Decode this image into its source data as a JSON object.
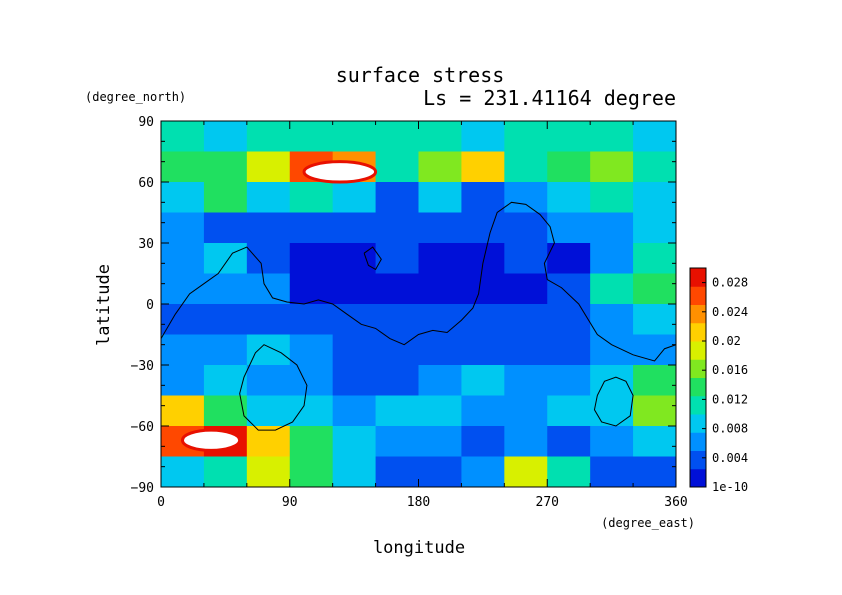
{
  "chart_data": {
    "type": "heatmap",
    "title": "surface stress",
    "subtitle": "Ls = 231.41164 degree",
    "xlabel": "longitude",
    "ylabel": "latitude",
    "xunit": "(degree_east)",
    "yunit": "(degree_north)",
    "xlim": [
      0,
      360
    ],
    "ylim": [
      -90,
      90
    ],
    "xticks": [
      "0",
      "90",
      "180",
      "270",
      "360"
    ],
    "yticks": [
      "90",
      "60",
      "30",
      "0",
      "−30",
      "−60",
      "−90"
    ],
    "xtick_values": [
      0,
      90,
      180,
      270,
      360
    ],
    "ytick_values": [
      90,
      60,
      30,
      0,
      -30,
      -60,
      -90
    ],
    "grid": false,
    "colorbar": {
      "position": "right",
      "labels": [
        "0.028",
        "0.024",
        "0.02",
        "0.016",
        "0.012",
        "0.008",
        "0.004",
        "1e-10"
      ],
      "label_values": [
        0.028,
        0.024,
        0.02,
        0.016,
        0.012,
        0.008,
        0.004,
        0.0
      ],
      "range": [
        0.0,
        0.03
      ],
      "colors": [
        "#0010d8",
        "#0050f0",
        "#0090ff",
        "#00c8f0",
        "#00e0b0",
        "#20e060",
        "#80e820",
        "#d8f000",
        "#ffd000",
        "#ff9000",
        "#ff4800",
        "#e81000"
      ]
    },
    "cells": {
      "lon_step": 30,
      "lat_step": 15,
      "lon_start": 0,
      "lat_start": 90,
      "rows": [
        [
          0.01,
          0.009,
          0.01,
          0.011,
          0.01,
          0.01,
          0.01,
          0.009,
          0.01,
          0.011,
          0.01,
          0.009
        ],
        [
          0.014,
          0.013,
          0.018,
          0.026,
          0.024,
          0.012,
          0.016,
          0.022,
          0.012,
          0.014,
          0.016,
          0.012
        ],
        [
          0.008,
          0.014,
          0.008,
          0.01,
          0.008,
          0.004,
          0.008,
          0.004,
          0.006,
          0.008,
          0.01,
          0.008
        ],
        [
          0.006,
          0.004,
          0.003,
          0.003,
          0.004,
          0.004,
          0.003,
          0.003,
          0.004,
          0.006,
          0.006,
          0.008
        ],
        [
          0.006,
          0.008,
          0.004,
          0.002,
          0.002,
          0.003,
          0.002,
          0.002,
          0.003,
          0.002,
          0.006,
          0.012
        ],
        [
          0.006,
          0.006,
          0.005,
          0.002,
          0.002,
          0.002,
          0.002,
          0.002,
          0.002,
          0.004,
          0.01,
          0.014
        ],
        [
          0.004,
          0.004,
          0.004,
          0.004,
          0.003,
          0.004,
          0.003,
          0.004,
          0.003,
          0.004,
          0.006,
          0.008
        ],
        [
          0.005,
          0.006,
          0.008,
          0.006,
          0.004,
          0.004,
          0.003,
          0.004,
          0.004,
          0.004,
          0.005,
          0.006
        ],
        [
          0.006,
          0.008,
          0.006,
          0.006,
          0.004,
          0.004,
          0.006,
          0.008,
          0.006,
          0.006,
          0.008,
          0.014
        ],
        [
          0.022,
          0.014,
          0.008,
          0.008,
          0.006,
          0.008,
          0.008,
          0.006,
          0.006,
          0.008,
          0.008,
          0.016
        ],
        [
          0.026,
          0.028,
          0.02,
          0.014,
          0.008,
          0.006,
          0.006,
          0.004,
          0.006,
          0.004,
          0.006,
          0.008
        ],
        [
          0.008,
          0.012,
          0.018,
          0.014,
          0.008,
          0.004,
          0.004,
          0.006,
          0.018,
          0.012,
          0.004,
          0.004
        ]
      ]
    },
    "saturated_regions": [
      {
        "lon": [
          100,
          150
        ],
        "lat": [
          60,
          70
        ]
      },
      {
        "lon": [
          15,
          55
        ],
        "lat": [
          -72,
          -62
        ]
      }
    ],
    "coastlines": [
      [
        [
          0,
          -17
        ],
        [
          10,
          -5
        ],
        [
          20,
          5
        ],
        [
          30,
          10
        ],
        [
          40,
          15
        ],
        [
          50,
          25
        ],
        [
          60,
          28
        ],
        [
          70,
          20
        ],
        [
          72,
          10
        ],
        [
          78,
          3
        ],
        [
          88,
          1
        ],
        [
          100,
          0
        ],
        [
          110,
          2
        ],
        [
          120,
          0
        ],
        [
          130,
          -5
        ],
        [
          140,
          -10
        ],
        [
          150,
          -12
        ],
        [
          160,
          -17
        ],
        [
          170,
          -20
        ],
        [
          180,
          -15
        ],
        [
          190,
          -13
        ],
        [
          200,
          -14
        ],
        [
          210,
          -8
        ],
        [
          218,
          -2
        ],
        [
          222,
          5
        ],
        [
          225,
          20
        ],
        [
          230,
          35
        ],
        [
          235,
          45
        ],
        [
          245,
          50
        ],
        [
          255,
          49
        ],
        [
          265,
          44
        ],
        [
          272,
          38
        ],
        [
          275,
          30
        ],
        [
          268,
          20
        ],
        [
          270,
          12
        ],
        [
          280,
          8
        ],
        [
          292,
          0
        ],
        [
          305,
          -15
        ],
        [
          315,
          -20
        ],
        [
          330,
          -25
        ],
        [
          345,
          -28
        ],
        [
          352,
          -22
        ],
        [
          360,
          -20
        ]
      ],
      [
        [
          62,
          -30
        ],
        [
          66,
          -24
        ],
        [
          72,
          -20
        ],
        [
          84,
          -24
        ],
        [
          95,
          -30
        ],
        [
          102,
          -40
        ],
        [
          100,
          -50
        ],
        [
          92,
          -58
        ],
        [
          80,
          -62
        ],
        [
          68,
          -62
        ],
        [
          58,
          -55
        ],
        [
          55,
          -44
        ],
        [
          58,
          -36
        ],
        [
          62,
          -30
        ]
      ],
      [
        [
          305,
          -45
        ],
        [
          310,
          -38
        ],
        [
          318,
          -36
        ],
        [
          325,
          -38
        ],
        [
          330,
          -45
        ],
        [
          328,
          -55
        ],
        [
          318,
          -60
        ],
        [
          308,
          -58
        ],
        [
          303,
          -52
        ],
        [
          305,
          -45
        ]
      ],
      [
        [
          142,
          25
        ],
        [
          148,
          28
        ],
        [
          154,
          22
        ],
        [
          150,
          17
        ],
        [
          145,
          19
        ],
        [
          142,
          25
        ]
      ]
    ]
  }
}
